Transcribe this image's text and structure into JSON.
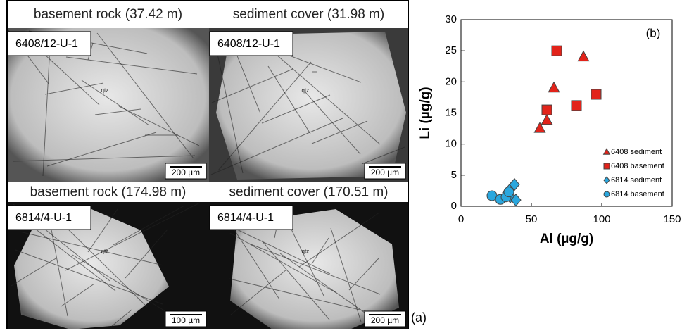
{
  "panel_a": {
    "label": "(a)",
    "images": [
      {
        "header": "basement rock (37.42 m)",
        "sample": "6408/12-U-1",
        "scale": "200 µm",
        "mineral": "qtz"
      },
      {
        "header": "sediment cover (31.98 m)",
        "sample": "6408/12-U-1",
        "scale": "200 µm",
        "mineral": "qtz"
      },
      {
        "header": "basement rock (174.98 m)",
        "sample": "6814/4-U-1",
        "scale": "100 µm",
        "mineral": "qtz"
      },
      {
        "header": "sediment cover (170.51 m)",
        "sample": "6814/4-U-1",
        "scale": "200 µm",
        "mineral": "qtz"
      }
    ]
  },
  "chart_data": {
    "type": "scatter",
    "panel_label": "(b)",
    "x_label": "Al (µg/g)",
    "y_label": "Li (µg/g)",
    "xlim": [
      0,
      150
    ],
    "xticks": [
      0,
      50,
      100,
      150
    ],
    "ylim": [
      0,
      30
    ],
    "yticks": [
      0,
      5,
      10,
      15,
      20,
      25,
      30
    ],
    "legend": "lower right",
    "series": [
      {
        "name": "6408 sediment",
        "color": "#e2231a",
        "marker": "triangle",
        "x": [
          56,
          61,
          66,
          87
        ],
        "y": [
          12.5,
          13.8,
          19,
          24
        ]
      },
      {
        "name": "6408 basement",
        "color": "#e2231a",
        "marker": "square",
        "x": [
          61,
          68,
          82,
          96
        ],
        "y": [
          15.5,
          25,
          16.2,
          18
        ]
      },
      {
        "name": "6814 sediment",
        "color": "#2aa7de",
        "marker": "diamond",
        "x": [
          33,
          36,
          38,
          35,
          39
        ],
        "y": [
          2.2,
          3,
          3.5,
          1.5,
          1
        ]
      },
      {
        "name": "6814 basement",
        "color": "#2aa7de",
        "marker": "circle",
        "x": [
          22,
          28,
          32,
          34
        ],
        "y": [
          1.7,
          1.1,
          1.5,
          2.3
        ]
      }
    ]
  }
}
